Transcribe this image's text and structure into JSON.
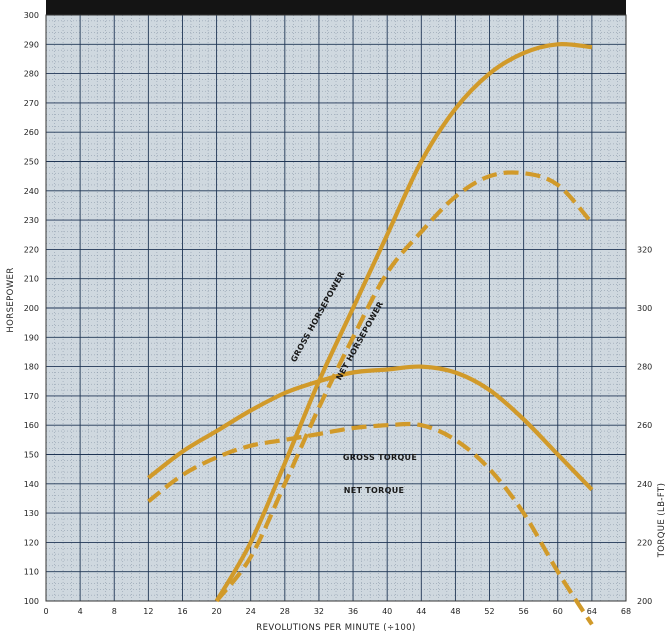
{
  "chart_data": {
    "type": "line",
    "xlabel": "REVOLUTIONS PER MINUTE (÷100)",
    "ylabel": "HORSEPOWER",
    "y2label": "TORQUE (LB-FT)",
    "xlim": [
      0,
      68
    ],
    "ylim": [
      100,
      300
    ],
    "y2lim": [
      200,
      320
    ],
    "x_ticks": [
      0,
      4,
      8,
      12,
      16,
      20,
      24,
      28,
      32,
      36,
      40,
      44,
      48,
      52,
      56,
      60,
      64,
      68
    ],
    "y_ticks": [
      100,
      110,
      120,
      130,
      140,
      150,
      160,
      170,
      180,
      190,
      200,
      210,
      220,
      230,
      240,
      250,
      260,
      270,
      280,
      290,
      300
    ],
    "y2_ticks": [
      200,
      220,
      240,
      260,
      280,
      300,
      320
    ],
    "grid": true,
    "colors": {
      "curve": "#d19a2a",
      "grid_major": "#1f3554",
      "grid_minor": "#6f7f93",
      "band": "#141414",
      "frame": "#333333"
    },
    "series": [
      {
        "name": "GROSS HORSEPOWER",
        "axis": "left",
        "style": "solid",
        "x": [
          20,
          24,
          28,
          32,
          36,
          40,
          44,
          48,
          52,
          56,
          60,
          64
        ],
        "values": [
          100,
          120,
          147,
          175,
          200,
          225,
          250,
          268,
          280,
          287,
          290,
          289
        ]
      },
      {
        "name": "NET HORSEPOWER",
        "axis": "left",
        "style": "dashed",
        "x": [
          20,
          24,
          28,
          32,
          36,
          40,
          44,
          48,
          52,
          56,
          60,
          64
        ],
        "values": [
          100,
          115,
          140,
          166,
          190,
          212,
          226,
          238,
          245,
          246,
          242,
          229
        ]
      },
      {
        "name": "GROSS TORQUE",
        "axis": "right",
        "style": "solid",
        "x": [
          12,
          16,
          20,
          24,
          28,
          32,
          36,
          40,
          44,
          48,
          52,
          56,
          60,
          64
        ],
        "values": [
          242,
          251,
          258,
          265,
          271,
          275,
          278,
          279,
          280,
          278,
          272,
          262,
          250,
          238
        ]
      },
      {
        "name": "NET TORQUE",
        "axis": "right",
        "style": "dashed",
        "x": [
          12,
          16,
          20,
          24,
          28,
          32,
          36,
          40,
          44,
          48,
          52,
          56,
          60,
          64
        ],
        "values": [
          234,
          243,
          249,
          253,
          255,
          257,
          259,
          260,
          260,
          255,
          245,
          230,
          210,
          192
        ]
      }
    ]
  }
}
